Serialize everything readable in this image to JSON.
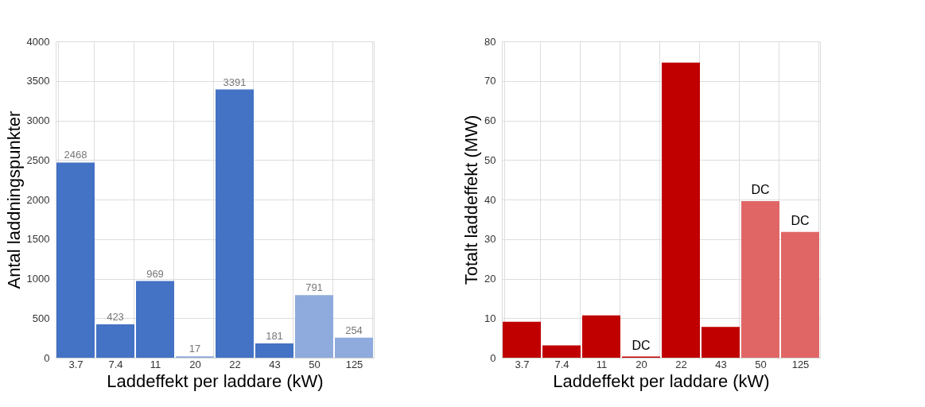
{
  "chart_data": [
    {
      "type": "bar",
      "xlabel": "Laddeffekt per laddare (kW)",
      "ylabel": "Antal laddningspunkter",
      "categories": [
        "3.7",
        "7.4",
        "11",
        "20",
        "22",
        "43",
        "50",
        "125"
      ],
      "values": [
        2468,
        423,
        969,
        17,
        3391,
        181,
        791,
        254
      ],
      "colors": [
        "#4472c4",
        "#4472c4",
        "#4472c4",
        "#8faadc",
        "#4472c4",
        "#4472c4",
        "#8faadc",
        "#8faadc"
      ],
      "ylim": [
        0,
        4000
      ],
      "yticks": [
        0,
        500,
        1000,
        1500,
        2000,
        2500,
        3000,
        3500,
        4000
      ],
      "grid": true,
      "data_labels": true
    },
    {
      "type": "bar",
      "xlabel": "Laddeffekt per laddare (kW)",
      "ylabel": "Totalt laddeffekt (MW)",
      "categories": [
        "3.7",
        "7.4",
        "11",
        "20",
        "22",
        "43",
        "50",
        "125"
      ],
      "values": [
        9.1,
        3.1,
        10.7,
        0.3,
        74.6,
        7.8,
        39.6,
        31.8
      ],
      "colors": [
        "#c00000",
        "#c00000",
        "#c00000",
        "#c00000",
        "#c00000",
        "#c00000",
        "#e06666",
        "#e06666"
      ],
      "ylim": [
        0,
        80
      ],
      "yticks": [
        0,
        10,
        20,
        30,
        40,
        50,
        60,
        70,
        80
      ],
      "grid": true,
      "annotations": [
        {
          "text": "DC",
          "x": "20",
          "y": 0.3
        },
        {
          "text": "DC",
          "x": "50",
          "y": 39.6
        },
        {
          "text": "DC",
          "x": "125",
          "y": 31.8
        }
      ]
    }
  ]
}
